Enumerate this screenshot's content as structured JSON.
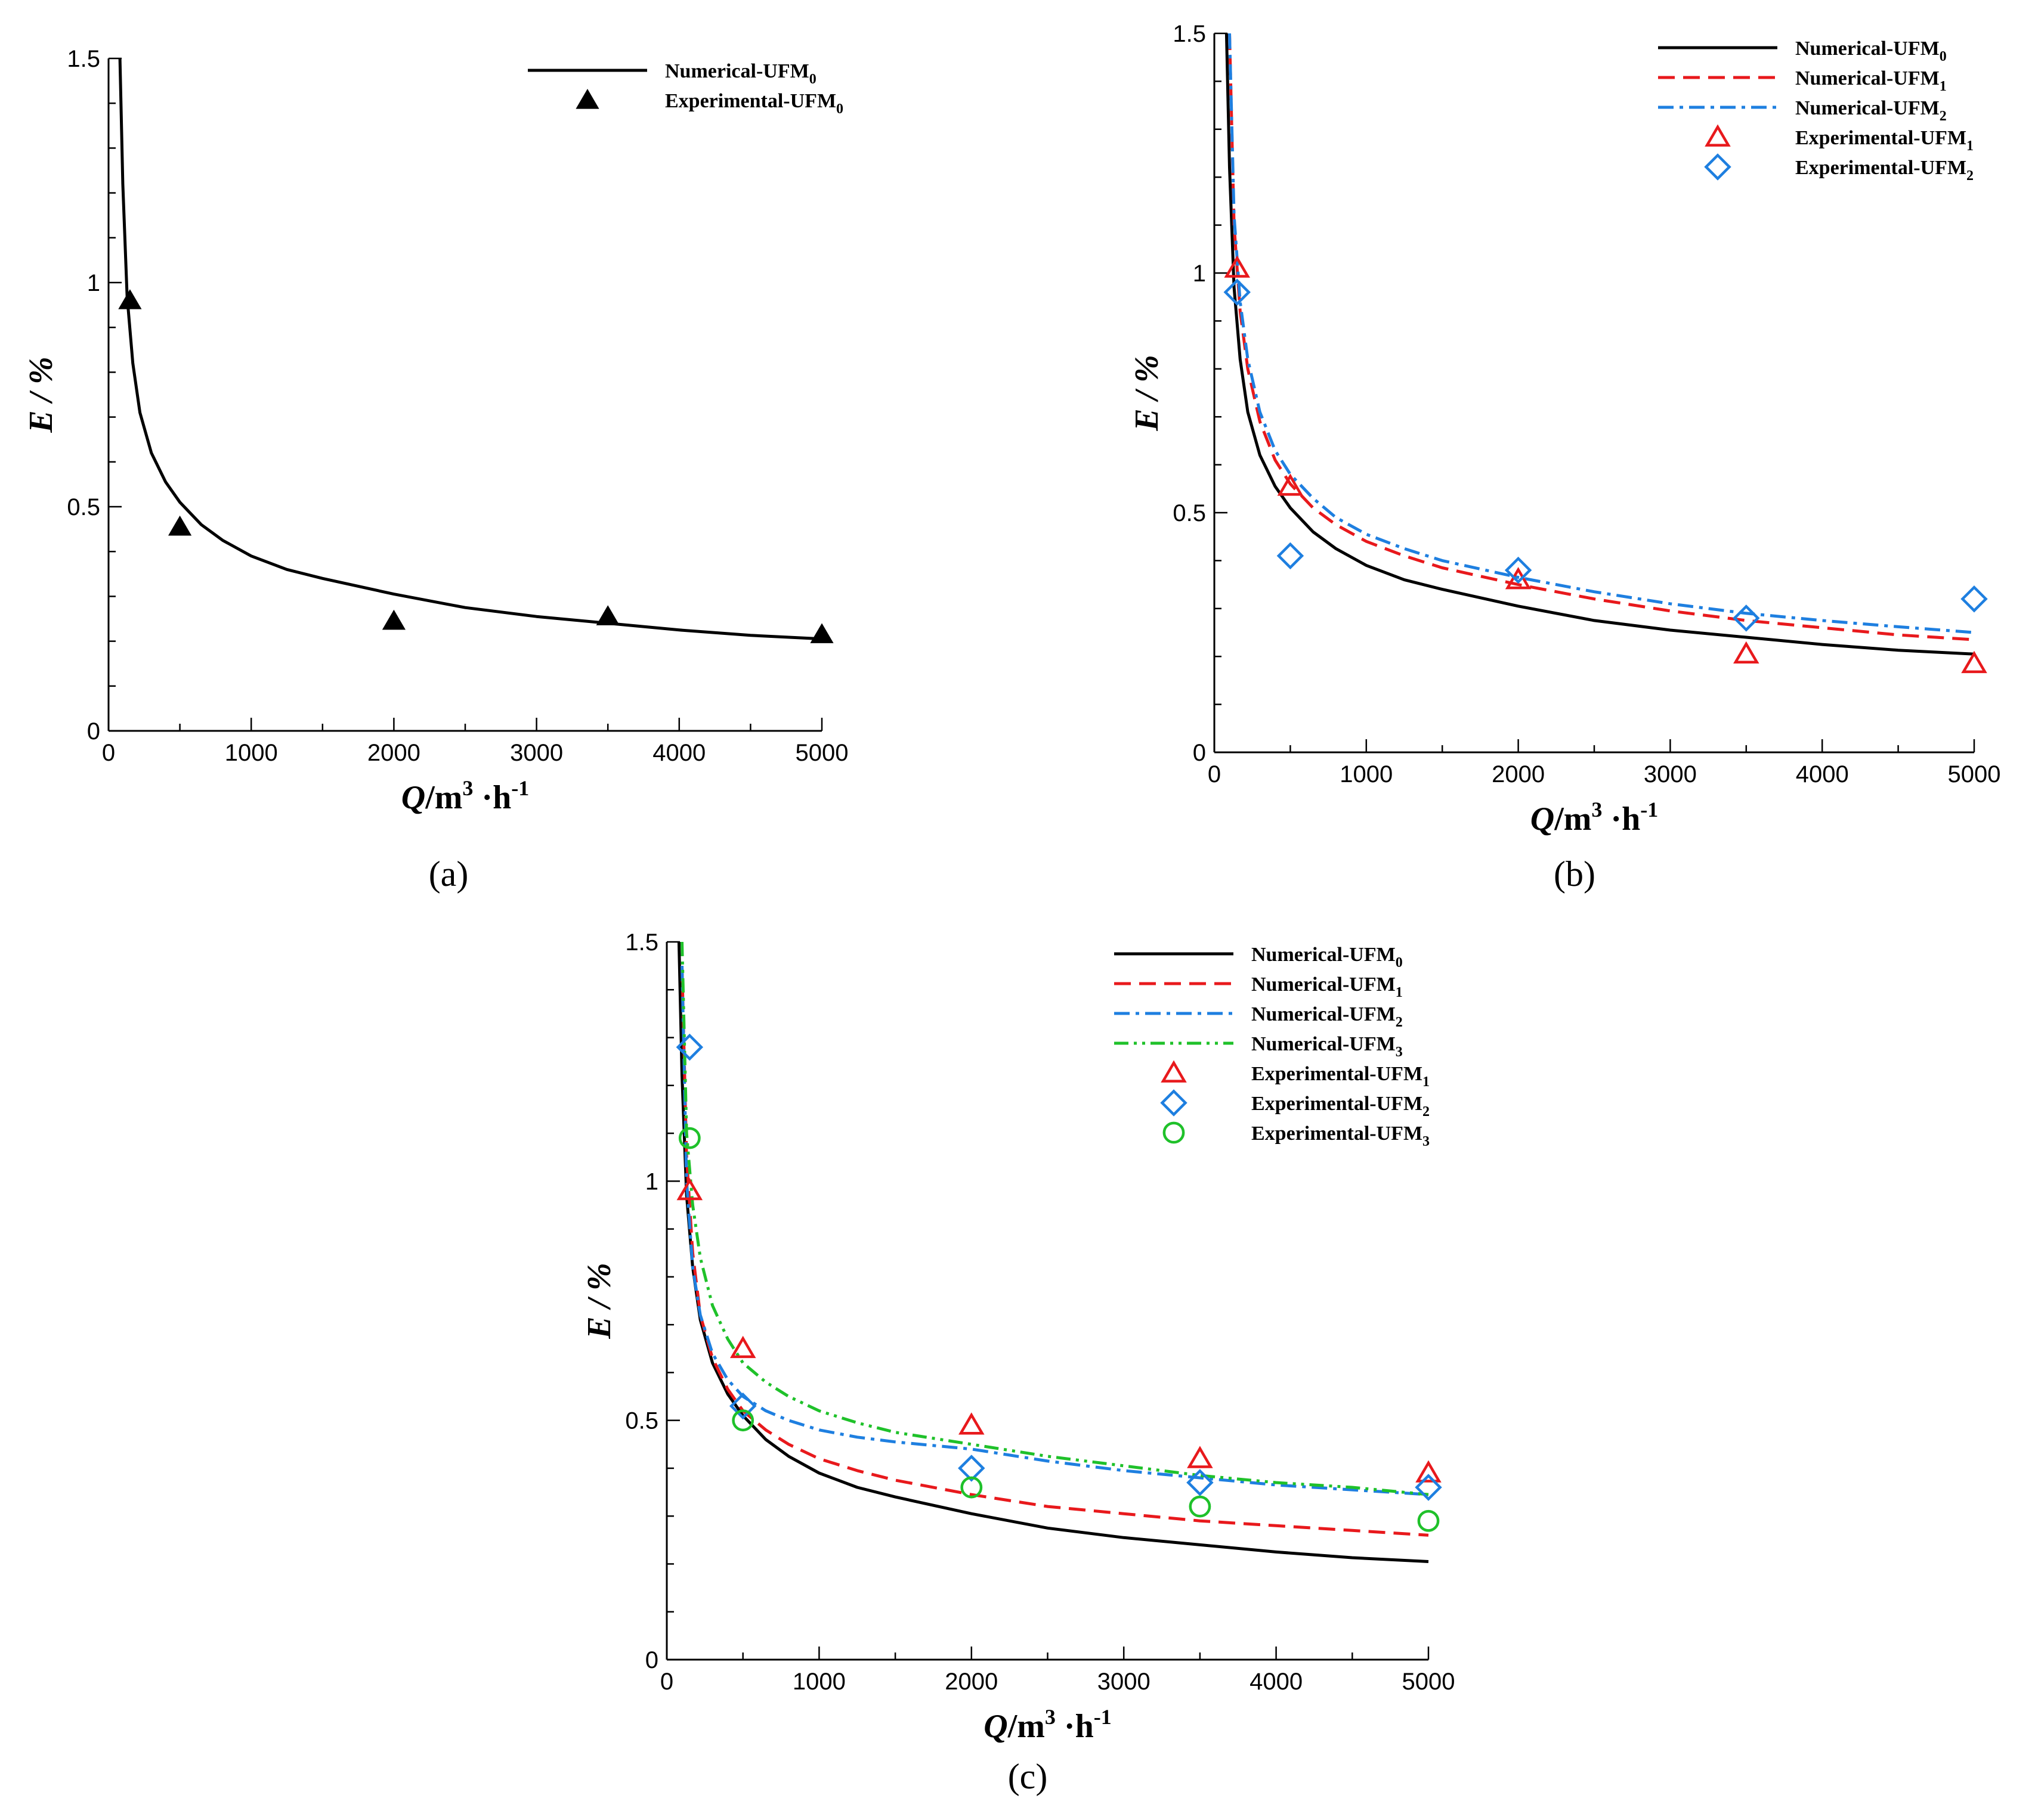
{
  "figure": {
    "panel_labels": [
      "(a)",
      "(b)",
      "(c)"
    ]
  },
  "colors": {
    "UFM0": "#000000",
    "UFM1": "#e8191c",
    "UFM2": "#1e7fe0",
    "UFM3": "#1fc12a"
  },
  "chart_data": [
    {
      "id": "a",
      "type": "line",
      "panel_label": "(a)",
      "title": "",
      "xlabel": {
        "main": "Q",
        "rest": "/m",
        "sup1": "3",
        "mid": " ·h",
        "sup2": "-1"
      },
      "ylabel": "E / %",
      "xlim": [
        0,
        5000
      ],
      "ylim": [
        0,
        1.5
      ],
      "xticks": [
        0,
        1000,
        2000,
        3000,
        4000,
        5000
      ],
      "yticks": [
        0,
        0.5,
        1,
        1.5
      ],
      "ytick_labels": [
        "0",
        "0.5",
        "1",
        "1.5"
      ],
      "grid": false,
      "legend_position": "top-right",
      "series": [
        {
          "key": "num0",
          "name": "Numerical-UFM",
          "sub": "0",
          "kind": "line",
          "style": "solid",
          "color": "#000000",
          "x": [
            80,
            100,
            130,
            170,
            220,
            300,
            400,
            500,
            650,
            800,
            1000,
            1250,
            1500,
            2000,
            2500,
            3000,
            3500,
            4000,
            4500,
            5000
          ],
          "y": [
            1.5,
            1.22,
            0.97,
            0.82,
            0.71,
            0.62,
            0.555,
            0.51,
            0.46,
            0.425,
            0.39,
            0.36,
            0.34,
            0.305,
            0.275,
            0.255,
            0.24,
            0.225,
            0.213,
            0.205
          ]
        },
        {
          "key": "exp0",
          "name": "Experimental-UFM",
          "sub": "0",
          "kind": "marker",
          "marker": "filled-triangle",
          "color": "#000000",
          "x": [
            150,
            500,
            2000,
            3500,
            5000
          ],
          "y": [
            0.96,
            0.455,
            0.245,
            0.255,
            0.215
          ]
        }
      ]
    },
    {
      "id": "b",
      "type": "line",
      "panel_label": "(b)",
      "title": "",
      "xlabel": {
        "main": "Q",
        "rest": "/m",
        "sup1": "3",
        "mid": " ·h",
        "sup2": "-1"
      },
      "ylabel": "E / %",
      "xlim": [
        0,
        5000
      ],
      "ylim": [
        0,
        1.5
      ],
      "xticks": [
        0,
        1000,
        2000,
        3000,
        4000,
        5000
      ],
      "yticks": [
        0,
        0.5,
        1,
        1.5
      ],
      "ytick_labels": [
        "0",
        "0.5",
        "1",
        "1.5"
      ],
      "grid": false,
      "legend_position": "top-right",
      "series": [
        {
          "key": "num0",
          "name": "Numerical-UFM",
          "sub": "0",
          "kind": "line",
          "style": "solid",
          "color": "#000000",
          "x": [
            80,
            100,
            130,
            170,
            220,
            300,
            400,
            500,
            650,
            800,
            1000,
            1250,
            1500,
            2000,
            2500,
            3000,
            3500,
            4000,
            4500,
            5000
          ],
          "y": [
            1.5,
            1.22,
            0.97,
            0.82,
            0.71,
            0.62,
            0.555,
            0.51,
            0.46,
            0.425,
            0.39,
            0.36,
            0.34,
            0.305,
            0.275,
            0.255,
            0.24,
            0.225,
            0.213,
            0.205
          ]
        },
        {
          "key": "num1",
          "name": "Numerical-UFM",
          "sub": "1",
          "kind": "line",
          "style": "dashed",
          "color": "#e8191c",
          "x": [
            100,
            130,
            170,
            220,
            300,
            400,
            500,
            650,
            800,
            1000,
            1250,
            1500,
            2000,
            2500,
            3000,
            3500,
            4000,
            4500,
            5000
          ],
          "y": [
            1.5,
            1.1,
            0.92,
            0.8,
            0.69,
            0.61,
            0.56,
            0.51,
            0.475,
            0.44,
            0.41,
            0.385,
            0.35,
            0.32,
            0.295,
            0.275,
            0.26,
            0.245,
            0.235
          ]
        },
        {
          "key": "num2",
          "name": "Numerical-UFM",
          "sub": "2",
          "kind": "line",
          "style": "dash-dot",
          "color": "#1e7fe0",
          "x": [
            100,
            130,
            170,
            220,
            300,
            400,
            500,
            650,
            800,
            1000,
            1250,
            1500,
            2000,
            2500,
            3000,
            3500,
            4000,
            4500,
            5000
          ],
          "y": [
            1.5,
            1.12,
            0.94,
            0.82,
            0.71,
            0.63,
            0.58,
            0.53,
            0.49,
            0.455,
            0.425,
            0.4,
            0.365,
            0.335,
            0.31,
            0.29,
            0.275,
            0.262,
            0.25
          ]
        },
        {
          "key": "exp1",
          "name": "Experimental-UFM",
          "sub": "1",
          "kind": "marker",
          "marker": "open-triangle",
          "color": "#e8191c",
          "x": [
            150,
            500,
            2000,
            3500,
            5000
          ],
          "y": [
            1.01,
            0.555,
            0.36,
            0.205,
            0.185
          ]
        },
        {
          "key": "exp2",
          "name": "Experimental-UFM",
          "sub": "2",
          "kind": "marker",
          "marker": "open-diamond",
          "color": "#1e7fe0",
          "x": [
            150,
            500,
            2000,
            3500,
            5000
          ],
          "y": [
            0.96,
            0.41,
            0.38,
            0.28,
            0.32
          ]
        }
      ]
    },
    {
      "id": "c",
      "type": "line",
      "panel_label": "(c)",
      "title": "",
      "xlabel": {
        "main": "Q",
        "rest": "/m",
        "sup1": "3",
        "mid": " ·h",
        "sup2": "-1"
      },
      "ylabel": "E / %",
      "xlim": [
        0,
        5000
      ],
      "ylim": [
        0,
        1.5
      ],
      "xticks": [
        0,
        1000,
        2000,
        3000,
        4000,
        5000
      ],
      "yticks": [
        0,
        0.5,
        1,
        1.5
      ],
      "ytick_labels": [
        "0",
        "0.5",
        "1",
        "1.5"
      ],
      "grid": false,
      "legend_position": "top-right",
      "series": [
        {
          "key": "num0",
          "name": "Numerical-UFM",
          "sub": "0",
          "kind": "line",
          "style": "solid",
          "color": "#000000",
          "x": [
            80,
            100,
            130,
            170,
            220,
            300,
            400,
            500,
            650,
            800,
            1000,
            1250,
            1500,
            2000,
            2500,
            3000,
            3500,
            4000,
            4500,
            5000
          ],
          "y": [
            1.5,
            1.22,
            0.97,
            0.82,
            0.71,
            0.62,
            0.555,
            0.51,
            0.46,
            0.425,
            0.39,
            0.36,
            0.34,
            0.305,
            0.275,
            0.255,
            0.24,
            0.225,
            0.213,
            0.205
          ]
        },
        {
          "key": "num1",
          "name": "Numerical-UFM",
          "sub": "1",
          "kind": "line",
          "style": "dashed",
          "color": "#e8191c",
          "x": [
            100,
            130,
            170,
            220,
            300,
            400,
            500,
            650,
            800,
            1000,
            1250,
            1500,
            2000,
            2500,
            3000,
            3500,
            4000,
            4500,
            5000
          ],
          "y": [
            1.45,
            1.05,
            0.85,
            0.72,
            0.63,
            0.565,
            0.52,
            0.48,
            0.45,
            0.42,
            0.395,
            0.375,
            0.345,
            0.32,
            0.305,
            0.29,
            0.28,
            0.27,
            0.26
          ]
        },
        {
          "key": "num2",
          "name": "Numerical-UFM",
          "sub": "2",
          "kind": "line",
          "style": "dash-dot",
          "color": "#1e7fe0",
          "x": [
            100,
            130,
            170,
            220,
            300,
            400,
            500,
            650,
            800,
            1000,
            1250,
            1500,
            2000,
            2500,
            3000,
            3500,
            4000,
            4500,
            5000
          ],
          "y": [
            1.45,
            1.0,
            0.82,
            0.72,
            0.64,
            0.585,
            0.55,
            0.52,
            0.5,
            0.48,
            0.465,
            0.455,
            0.44,
            0.415,
            0.395,
            0.38,
            0.365,
            0.355,
            0.345
          ]
        },
        {
          "key": "num3",
          "name": "Numerical-UFM",
          "sub": "3",
          "kind": "line",
          "style": "dash-dot-dot",
          "color": "#1fc12a",
          "x": [
            100,
            130,
            170,
            220,
            300,
            400,
            500,
            650,
            800,
            1000,
            1250,
            1500,
            2000,
            2500,
            3000,
            3500,
            4000,
            4500,
            5000
          ],
          "y": [
            1.5,
            1.1,
            0.95,
            0.84,
            0.74,
            0.67,
            0.62,
            0.58,
            0.55,
            0.52,
            0.495,
            0.475,
            0.45,
            0.425,
            0.405,
            0.385,
            0.37,
            0.36,
            0.345
          ]
        },
        {
          "key": "exp1",
          "name": "Experimental-UFM",
          "sub": "1",
          "kind": "marker",
          "marker": "open-triangle",
          "color": "#e8191c",
          "x": [
            150,
            500,
            2000,
            3500,
            5000
          ],
          "y": [
            0.98,
            0.65,
            0.49,
            0.42,
            0.39
          ]
        },
        {
          "key": "exp2",
          "name": "Experimental-UFM",
          "sub": "2",
          "kind": "marker",
          "marker": "open-diamond",
          "color": "#1e7fe0",
          "x": [
            150,
            500,
            2000,
            3500,
            5000
          ],
          "y": [
            1.28,
            0.53,
            0.4,
            0.37,
            0.36
          ]
        },
        {
          "key": "exp3",
          "name": "Experimental-UFM",
          "sub": "3",
          "kind": "marker",
          "marker": "open-circle",
          "color": "#1fc12a",
          "x": [
            150,
            500,
            2000,
            3500,
            5000
          ],
          "y": [
            1.09,
            0.5,
            0.36,
            0.32,
            0.29
          ]
        }
      ]
    }
  ]
}
